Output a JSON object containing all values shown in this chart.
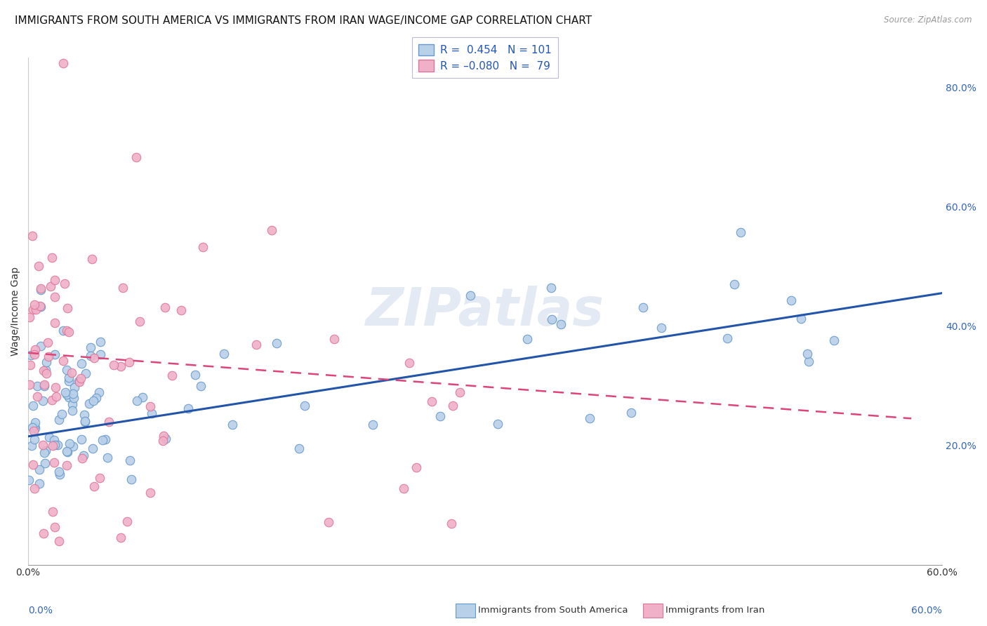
{
  "title": "IMMIGRANTS FROM SOUTH AMERICA VS IMMIGRANTS FROM IRAN WAGE/INCOME GAP CORRELATION CHART",
  "source": "Source: ZipAtlas.com",
  "ylabel": "Wage/Income Gap",
  "x_min": 0.0,
  "x_max": 0.6,
  "y_min": 0.0,
  "y_max": 0.85,
  "x_ticks": [
    0.0,
    0.1,
    0.2,
    0.3,
    0.4,
    0.5,
    0.6
  ],
  "x_tick_labels": [
    "0.0%",
    "",
    "",
    "",
    "",
    "",
    "60.0%"
  ],
  "y_ticks": [
    0.2,
    0.4,
    0.6,
    0.8
  ],
  "y_tick_labels": [
    "20.0%",
    "40.0%",
    "60.0%",
    "80.0%"
  ],
  "series1_label": "Immigrants from South America",
  "series2_label": "Immigrants from Iran",
  "series1_color": "#b8d0e8",
  "series2_color": "#f0b0c8",
  "series1_edge": "#6699cc",
  "series2_edge": "#dd7799",
  "series1_line_color": "#2255aa",
  "series2_line_color": "#dd4477",
  "watermark": "ZIPatlas",
  "background_color": "#ffffff",
  "grid_color": "#cccccc",
  "title_fontsize": 11,
  "axis_label_fontsize": 10,
  "tick_fontsize": 10,
  "legend_fontsize": 11,
  "marker_size": 9,
  "seed1": 12,
  "seed2": 55,
  "blue_line_x0": 0.0,
  "blue_line_y0": 0.215,
  "blue_line_x1": 0.6,
  "blue_line_y1": 0.455,
  "pink_line_x0": 0.0,
  "pink_line_y0": 0.355,
  "pink_line_x1": 0.58,
  "pink_line_y1": 0.245
}
